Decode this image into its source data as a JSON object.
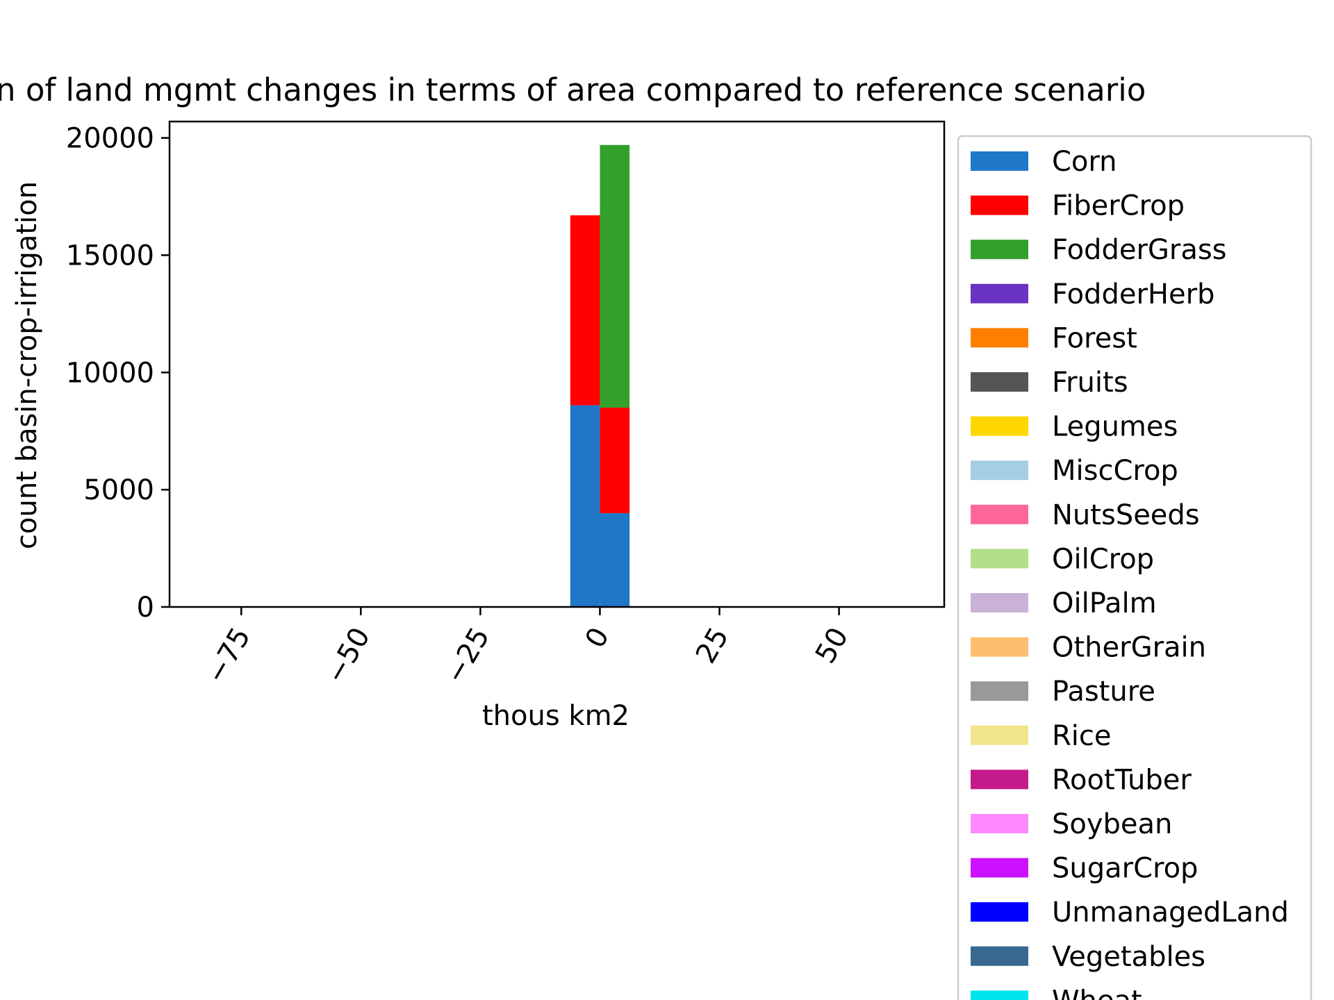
{
  "chart_data": {
    "type": "bar",
    "title": "n of land mgmt changes in terms of area compared to reference scenario",
    "xlabel": "thous km2",
    "ylabel": "count basin-crop-irrigation",
    "xlim": [
      -90,
      72
    ],
    "ylim": [
      0,
      20700
    ],
    "xticks": [
      -75,
      -50,
      -25,
      0,
      25,
      50
    ],
    "xtick_labels": [
      "−75",
      "−50",
      "−25",
      "0",
      "25",
      "50"
    ],
    "yticks": [
      0,
      5000,
      10000,
      15000,
      20000
    ],
    "ytick_labels": [
      "0",
      "5000",
      "10000",
      "15000",
      "20000"
    ],
    "grid": false,
    "legend_position": "outside-right",
    "stacked": true,
    "bins": [
      {
        "x0": -6.2,
        "x1": 0
      },
      {
        "x0": 0,
        "x1": 6.2
      }
    ],
    "series": [
      {
        "name": "Corn",
        "color": "#1f77c8",
        "values": [
          8600,
          4000
        ]
      },
      {
        "name": "FiberCrop",
        "color": "#ff0000",
        "values": [
          8100,
          4500
        ]
      },
      {
        "name": "FodderGrass",
        "color": "#33a02c",
        "values": [
          0,
          11200
        ]
      },
      {
        "name": "FodderHerb",
        "color": "#6a33c2",
        "values": [
          0,
          0
        ]
      },
      {
        "name": "Forest",
        "color": "#ff7f00",
        "values": [
          0,
          0
        ]
      },
      {
        "name": "Fruits",
        "color": "#555555",
        "values": [
          0,
          0
        ]
      },
      {
        "name": "Legumes",
        "color": "#ffd700",
        "values": [
          0,
          0
        ]
      },
      {
        "name": "MiscCrop",
        "color": "#a6cee3",
        "values": [
          0,
          0
        ]
      },
      {
        "name": "NutsSeeds",
        "color": "#ff6699",
        "values": [
          0,
          0
        ]
      },
      {
        "name": "OilCrop",
        "color": "#b2df8a",
        "values": [
          0,
          0
        ]
      },
      {
        "name": "OilPalm",
        "color": "#cab2d6",
        "values": [
          0,
          0
        ]
      },
      {
        "name": "OtherGrain",
        "color": "#fdbf6f",
        "values": [
          0,
          0
        ]
      },
      {
        "name": "Pasture",
        "color": "#999999",
        "values": [
          0,
          0
        ]
      },
      {
        "name": "Rice",
        "color": "#f0e68c",
        "values": [
          0,
          0
        ]
      },
      {
        "name": "RootTuber",
        "color": "#c51b8a",
        "values": [
          0,
          0
        ]
      },
      {
        "name": "Soybean",
        "color": "#ff88ff",
        "values": [
          0,
          0
        ]
      },
      {
        "name": "SugarCrop",
        "color": "#cc11ff",
        "values": [
          0,
          0
        ]
      },
      {
        "name": "UnmanagedLand",
        "color": "#0000ff",
        "values": [
          0,
          0
        ]
      },
      {
        "name": "Vegetables",
        "color": "#386890",
        "values": [
          0,
          0
        ]
      },
      {
        "name": "Wheat",
        "color": "#00e5ee",
        "values": [
          0,
          0
        ]
      }
    ]
  }
}
